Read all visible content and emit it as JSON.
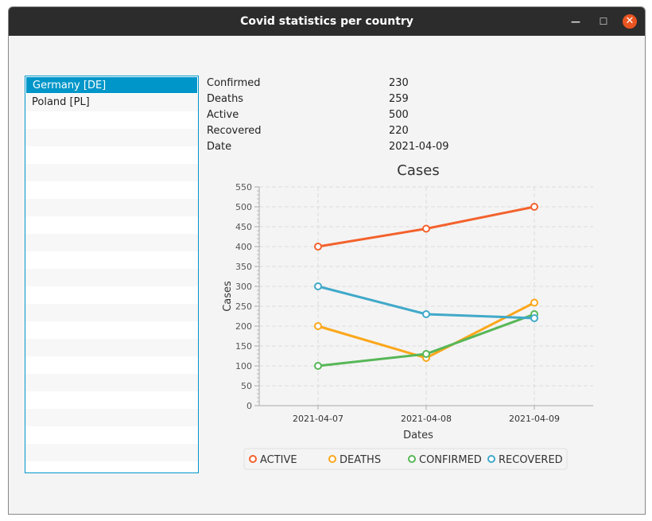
{
  "window": {
    "title": "Covid statistics per country"
  },
  "countries": [
    {
      "label": "Germany [DE]",
      "selected": true
    },
    {
      "label": "Poland [PL]",
      "selected": false
    }
  ],
  "stats": [
    {
      "label": "Confirmed",
      "value": "230"
    },
    {
      "label": "Deaths",
      "value": "259"
    },
    {
      "label": "Active",
      "value": "500"
    },
    {
      "label": "Recovered",
      "value": "220"
    },
    {
      "label": "Date",
      "value": "2021-04-09"
    }
  ],
  "chart_data": {
    "type": "line",
    "title": "Cases",
    "xlabel": "Dates",
    "ylabel": "Cases",
    "categories": [
      "2021-04-07",
      "2021-04-08",
      "2021-04-09"
    ],
    "ylim": [
      0,
      550
    ],
    "yticks": [
      0,
      50,
      100,
      150,
      200,
      250,
      300,
      350,
      400,
      450,
      500,
      550
    ],
    "grid": true,
    "legend": "bottom",
    "series": [
      {
        "name": "ACTIVE",
        "color": "#f3622d",
        "values": [
          400,
          445,
          500
        ]
      },
      {
        "name": "DEATHS",
        "color": "#fba71b",
        "values": [
          200,
          120,
          259
        ]
      },
      {
        "name": "CONFIRMED",
        "color": "#57b757",
        "values": [
          100,
          130,
          230
        ]
      },
      {
        "name": "RECOVERED",
        "color": "#41a9c9",
        "values": [
          300,
          230,
          220
        ]
      }
    ]
  }
}
